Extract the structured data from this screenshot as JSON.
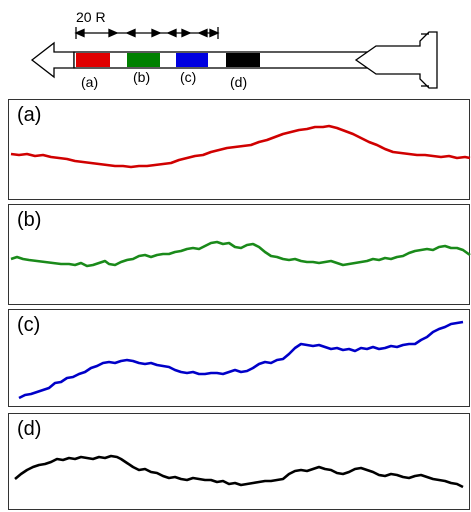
{
  "schematic": {
    "scale_label": "20 R",
    "segments": [
      {
        "id": "a",
        "label": "(a)",
        "color": "#e00000"
      },
      {
        "id": "b",
        "label": "(b)",
        "color": "#008000"
      },
      {
        "id": "c",
        "label": "(c)",
        "color": "#0000e0"
      },
      {
        "id": "d",
        "label": "(d)",
        "color": "#000000"
      }
    ]
  },
  "panels": [
    {
      "label": "(a)",
      "color": "#d00000"
    },
    {
      "label": "(b)",
      "color": "#1a8a1a"
    },
    {
      "label": "(c)",
      "color": "#0000c8"
    },
    {
      "label": "(d)",
      "color": "#000000"
    }
  ]
}
